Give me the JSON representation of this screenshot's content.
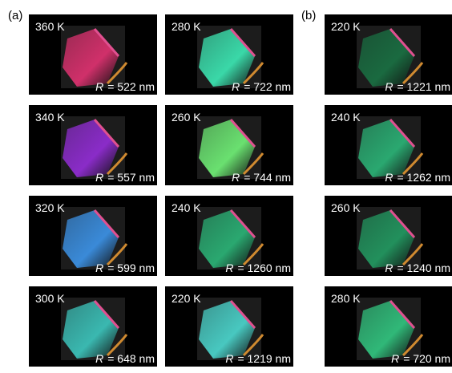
{
  "panels": [
    {
      "label": "(a)",
      "columns": [
        [
          {
            "temperature": "360 K",
            "r_symbol": "R",
            "r_text": "=  522 nm",
            "color": "#d0306a"
          },
          {
            "temperature": "340 K",
            "r_symbol": "R",
            "r_text": "=  557 nm",
            "color": "#8a2cc8"
          },
          {
            "temperature": "320 K",
            "r_symbol": "R",
            "r_text": "=  599 nm",
            "color": "#3a8ad8"
          },
          {
            "temperature": "300 K",
            "r_symbol": "R",
            "r_text": "=  648 nm",
            "color": "#3ab8b0"
          }
        ],
        [
          {
            "temperature": "280 K",
            "r_symbol": "R",
            "r_text": "=  722 nm",
            "color": "#3ad8a8"
          },
          {
            "temperature": "260 K",
            "r_symbol": "R",
            "r_text": "=  744 nm",
            "color": "#6ae070"
          },
          {
            "temperature": "240 K",
            "r_symbol": "R",
            "r_text": "= 1260 nm",
            "color": "#2aa870"
          },
          {
            "temperature": "220 K",
            "r_symbol": "R",
            "r_text": "= 1219 nm",
            "color": "#48c8c0"
          }
        ]
      ]
    },
    {
      "label": "(b)",
      "columns": [
        [
          {
            "temperature": "220 K",
            "r_symbol": "R",
            "r_text": "= 1221 nm",
            "color": "#1a6a40"
          },
          {
            "temperature": "240 K",
            "r_symbol": "R",
            "r_text": "= 1262 nm",
            "color": "#2aa870"
          },
          {
            "temperature": "260 K",
            "r_symbol": "R",
            "r_text": "= 1240 nm",
            "color": "#22905c"
          },
          {
            "temperature": "280 K",
            "r_symbol": "R",
            "r_text": "=  720 nm",
            "color": "#30b878"
          }
        ]
      ]
    }
  ]
}
